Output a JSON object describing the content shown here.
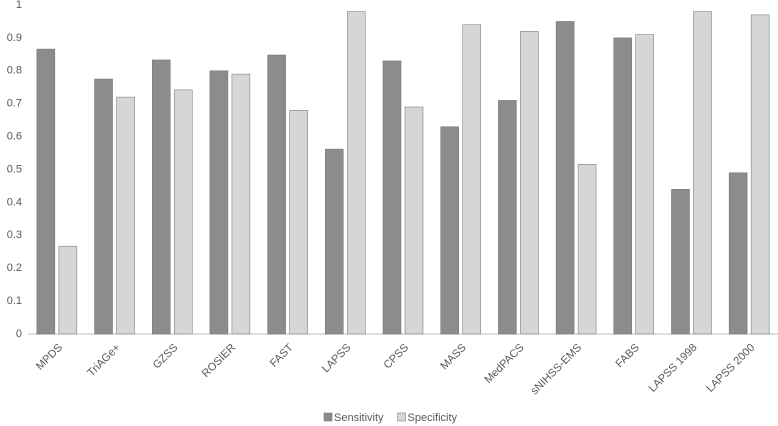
{
  "chart_data": {
    "type": "bar",
    "categories": [
      "MPDS",
      "TriAGe+",
      "GZSS",
      "ROSIER",
      "FAST",
      "LAPSS",
      "CPSS",
      "MASS",
      "MedPACS",
      "sNIHSS-EMS",
      "FABS",
      "LAPSS 1998",
      "LAPSS 2000"
    ],
    "series": [
      {
        "name": "Sensitivity",
        "color": "#8c8c8c",
        "values": [
          0.866,
          0.775,
          0.833,
          0.8,
          0.848,
          0.562,
          0.83,
          0.63,
          0.71,
          0.95,
          0.9,
          0.44,
          0.49
        ]
      },
      {
        "name": "Specificity",
        "color": "#d6d6d6",
        "values": [
          0.267,
          0.72,
          0.742,
          0.79,
          0.68,
          0.98,
          0.69,
          0.94,
          0.92,
          0.516,
          0.91,
          0.98,
          0.97
        ]
      }
    ],
    "ylim": [
      0,
      1
    ],
    "yticks": [
      0,
      0.1,
      0.2,
      0.3,
      0.4,
      0.5,
      0.6,
      0.7,
      0.8,
      0.9,
      1
    ],
    "grid": false,
    "legend": "bottom"
  }
}
